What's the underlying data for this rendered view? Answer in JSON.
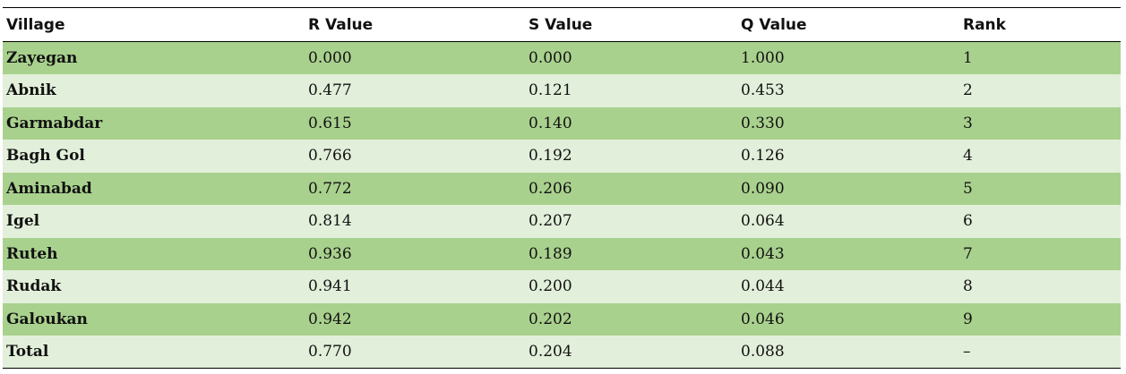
{
  "table": {
    "headers": [
      "Village",
      "R Value",
      "S Value",
      "Q Value",
      "Rank"
    ],
    "rows": [
      {
        "village": "Zayegan",
        "r": "0.000",
        "s": "0.000",
        "q": "1.000",
        "rank": "1"
      },
      {
        "village": "Abnik",
        "r": "0.477",
        "s": "0.121",
        "q": "0.453",
        "rank": "2"
      },
      {
        "village": "Garmabdar",
        "r": "0.615",
        "s": "0.140",
        "q": "0.330",
        "rank": "3"
      },
      {
        "village": "Bagh Gol",
        "r": "0.766",
        "s": "0.192",
        "q": "0.126",
        "rank": "4"
      },
      {
        "village": "Aminabad",
        "r": "0.772",
        "s": "0.206",
        "q": "0.090",
        "rank": "5"
      },
      {
        "village": "Igel",
        "r": "0.814",
        "s": "0.207",
        "q": "0.064",
        "rank": "6"
      },
      {
        "village": "Ruteh",
        "r": "0.936",
        "s": "0.189",
        "q": "0.043",
        "rank": "7"
      },
      {
        "village": "Rudak",
        "r": "0.941",
        "s": "0.200",
        "q": "0.044",
        "rank": "8"
      },
      {
        "village": "Galoukan",
        "r": "0.942",
        "s": "0.202",
        "q": "0.046",
        "rank": "9"
      },
      {
        "village": "Total",
        "r": "0.770",
        "s": "0.204",
        "q": "0.088",
        "rank": "–"
      }
    ]
  },
  "colors": {
    "row_dark": "#a9d18e",
    "row_light": "#e2efda",
    "rule": "#000000"
  }
}
